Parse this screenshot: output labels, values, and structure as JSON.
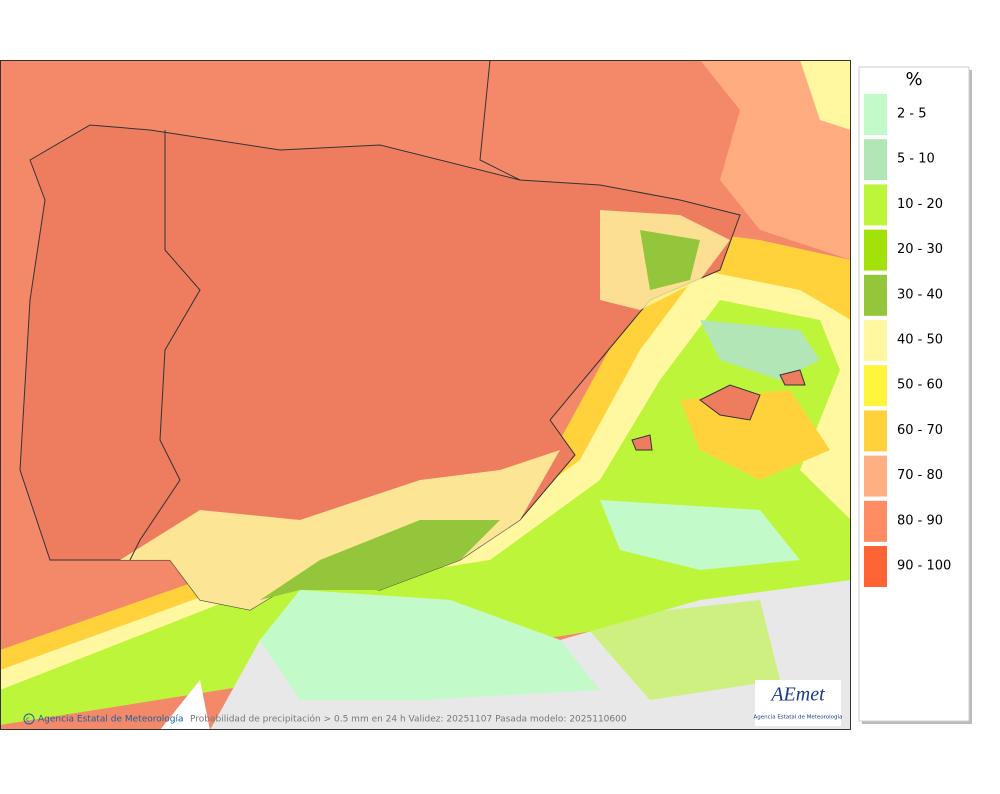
{
  "legend": {
    "title": "%",
    "items": [
      {
        "label": "2 - 5",
        "color": "#c2fbc9"
      },
      {
        "label": "5 - 10",
        "color": "#b2e6b6"
      },
      {
        "label": "10 - 20",
        "color": "#bdf53a"
      },
      {
        "label": "20 - 30",
        "color": "#a3e10a"
      },
      {
        "label": "30 - 40",
        "color": "#93c63a"
      },
      {
        "label": "40 - 50",
        "color": "#fff8a0"
      },
      {
        "label": "50 - 60",
        "color": "#fff53c"
      },
      {
        "label": "60 - 70",
        "color": "#ffd23c"
      },
      {
        "label": "70 - 80",
        "color": "#ffb083"
      },
      {
        "label": "80 - 90",
        "color": "#ff8c62"
      },
      {
        "label": "90 - 100",
        "color": "#ff6434"
      }
    ]
  },
  "footer": {
    "credit": "Agencia Estatal de Meteorología",
    "caption": "Probabilidad de precipitación > 0.5 mm en 24 h Validez: 20251107 Pasada modelo: 2025110600"
  },
  "logo": {
    "name": "AEmet",
    "subtitle": "Agencia Estatal de Meteorología"
  }
}
